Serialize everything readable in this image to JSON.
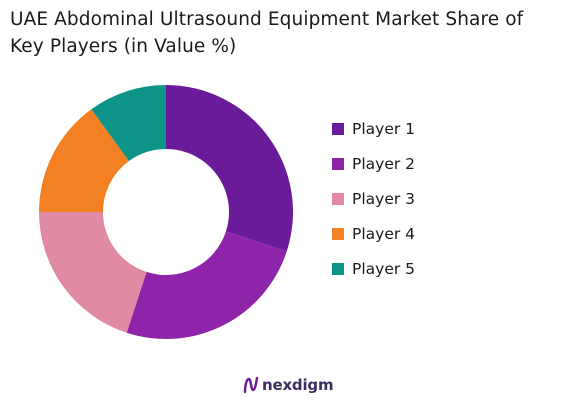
{
  "chart_data": {
    "type": "pie",
    "variant": "donut",
    "title": "UAE Abdominal Ultrasound Equipment Market Share of Key Players (in Value %)",
    "categories": [
      "Player 1",
      "Player 2",
      "Player 3",
      "Player 4",
      "Player 5"
    ],
    "values": [
      30,
      25,
      20,
      15,
      10
    ],
    "colors": [
      "#6a1b9a",
      "#8e24aa",
      "#e08aa4",
      "#f48024",
      "#0d9488"
    ],
    "legend_position": "right"
  },
  "footer": {
    "brand": "nexdigm",
    "brand_color": "#3b2d5e"
  }
}
